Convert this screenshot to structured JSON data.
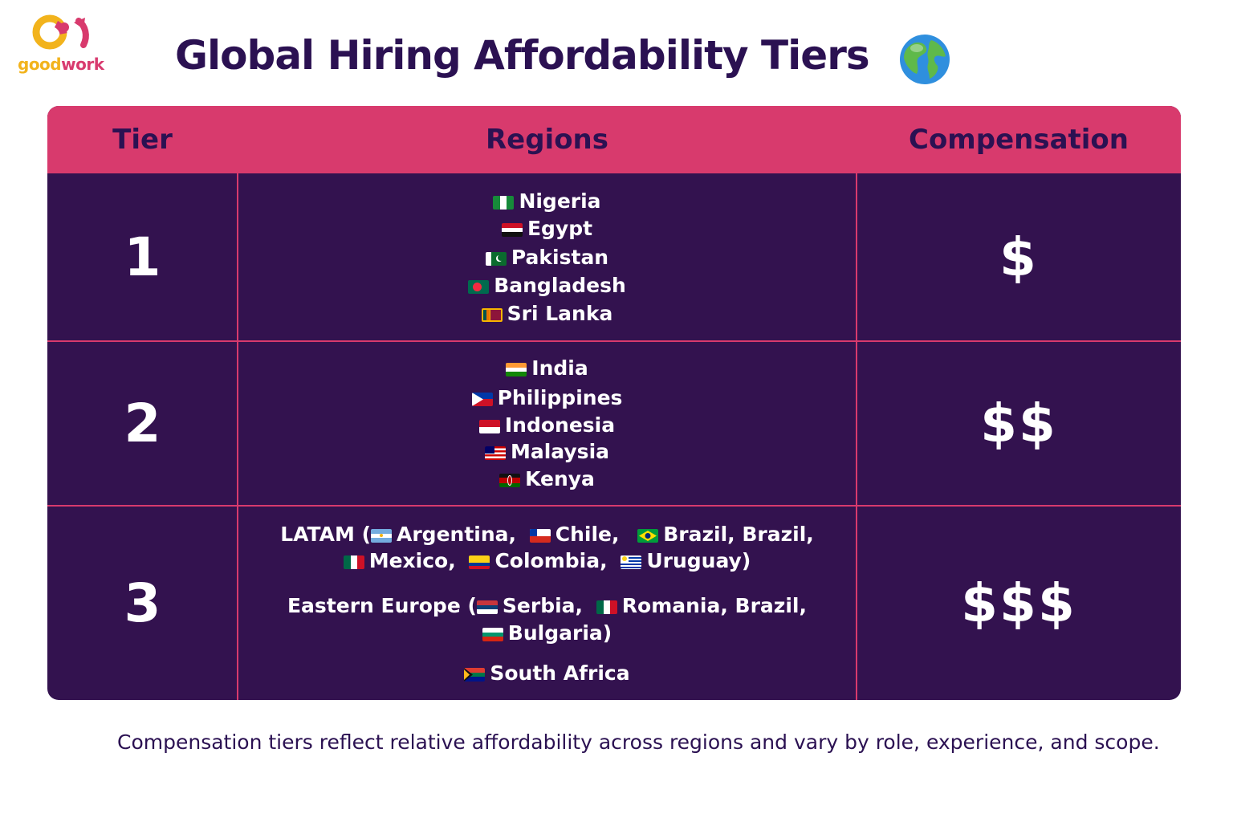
{
  "brand": {
    "name_part1": "good",
    "name_part2": "work",
    "primary": "#d83a6d",
    "secondary": "#f2b31c"
  },
  "title": "Global Hiring Affordability Tiers",
  "title_icon": "globe-icon",
  "table": {
    "headers": {
      "tier": "Tier",
      "regions": "Regions",
      "compensation": "Compensation"
    },
    "header_color": "#d83a6d",
    "body_color": "#33124f",
    "rows": [
      {
        "tier": "1",
        "compensation": "$",
        "regions": [
          "Nigeria",
          "Egypt",
          "Pakistan",
          "Bangladesh",
          "Sri Lanka"
        ]
      },
      {
        "tier": "2",
        "compensation": "$$",
        "regions": [
          "India",
          "Philippines",
          "Indonesia",
          "Malaysia",
          "Kenya"
        ]
      },
      {
        "tier": "3",
        "compensation": "$$$",
        "latam": {
          "prefix": "LATAM (",
          "items": [
            "Argentina,",
            "Chile,",
            "Brazil, Brazil,",
            "Mexico,",
            "Colombia,",
            "Uruguay)"
          ]
        },
        "eastern_europe": {
          "prefix": "Eastern Europe (",
          "items": [
            "Serbia,",
            "Romania, Brazil,",
            "Bulgaria)"
          ]
        },
        "other": "South Africa"
      }
    ]
  },
  "footnote": "Compensation tiers reflect relative affordability across regions and vary by role, experience, and scope."
}
